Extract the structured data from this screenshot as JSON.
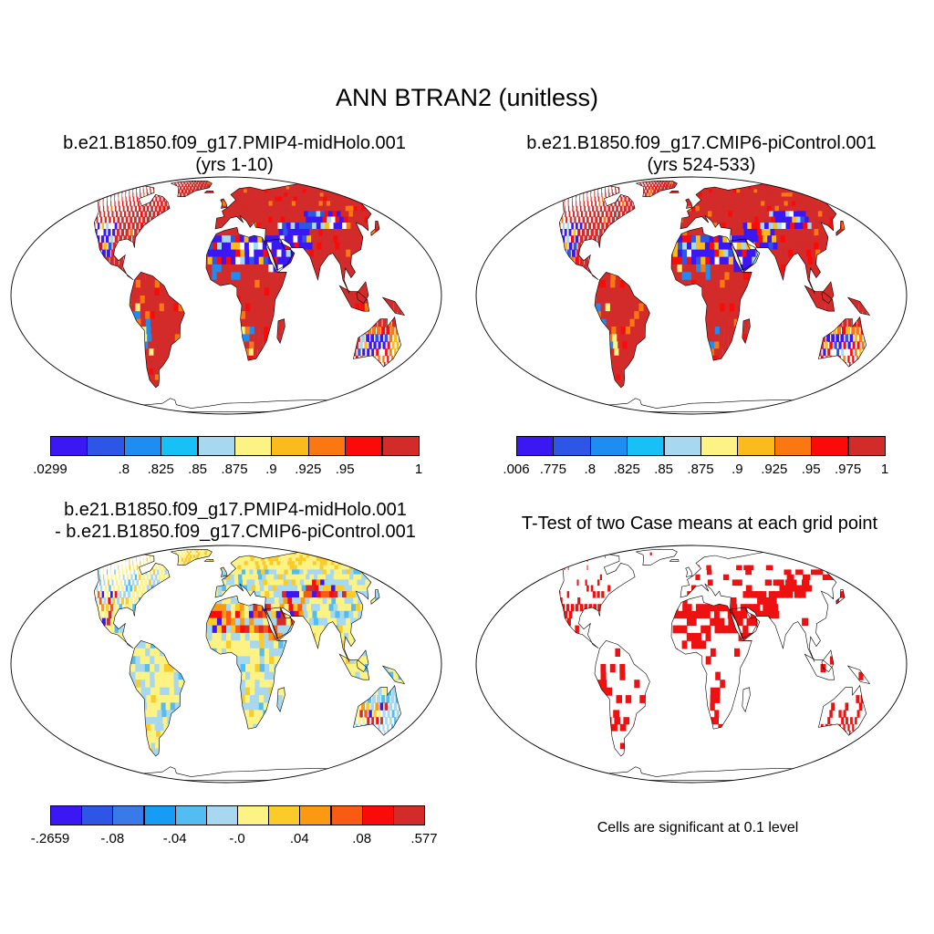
{
  "main_title": "ANN BTRAN2 (unitless)",
  "panels": [
    {
      "title_line1": "b.e21.B1850.f09_g17.PMIP4-midHolo.001",
      "title_line2": "(yrs 1-10)",
      "scheme": "levels",
      "colorbar": {
        "colors": [
          "#3b18f3",
          "#2e56e6",
          "#1f8cf2",
          "#17c0f6",
          "#a8d8ef",
          "#fdf385",
          "#fbbb1c",
          "#fb7712",
          "#fb0a0a",
          "#d32a2a"
        ],
        "labels": [
          ".0299",
          ".8",
          ".825",
          ".85",
          ".875",
          ".9",
          ".925",
          ".95",
          "1"
        ]
      }
    },
    {
      "title_line1": "b.e21.B1850.f09_g17.CMIP6-piControl.001",
      "title_line2": "(yrs 524-533)",
      "scheme": "levels",
      "colorbar": {
        "colors": [
          "#3b18f3",
          "#2e56e6",
          "#1f8cf2",
          "#17c0f6",
          "#a8d8ef",
          "#fdf385",
          "#fbbb1c",
          "#fb7712",
          "#fb0a0a",
          "#d32a2a"
        ],
        "labels": [
          ".006",
          ".775",
          ".8",
          ".825",
          ".85",
          ".875",
          ".9",
          ".925",
          ".95",
          ".975",
          "1"
        ]
      }
    },
    {
      "title_line1": "b.e21.B1850.f09_g17.PMIP4-midHolo.001",
      "title_line2": "- b.e21.B1850.f09_g17.CMIP6-piControl.001",
      "scheme": "diff",
      "colorbar": {
        "colors": [
          "#3b18f3",
          "#2e56e6",
          "#3a7ae8",
          "#169cf5",
          "#53bcf0",
          "#a8d8ef",
          "#fdf385",
          "#fbcb2a",
          "#fb9a12",
          "#fb5a12",
          "#fb0a0a",
          "#d32a2a"
        ],
        "labels": [
          "-.2659",
          "-.08",
          "-.04",
          "-.0",
          ".04",
          ".08",
          ".577"
        ]
      }
    },
    {
      "title_line1": "T-Test of two Case means at each grid point",
      "title_line2": "",
      "scheme": "ttest",
      "note": "Cells are significant at 0.1 level"
    }
  ],
  "colors": {
    "map_outline": "#000000",
    "coast": "#000000",
    "significant": "#ee1111"
  }
}
